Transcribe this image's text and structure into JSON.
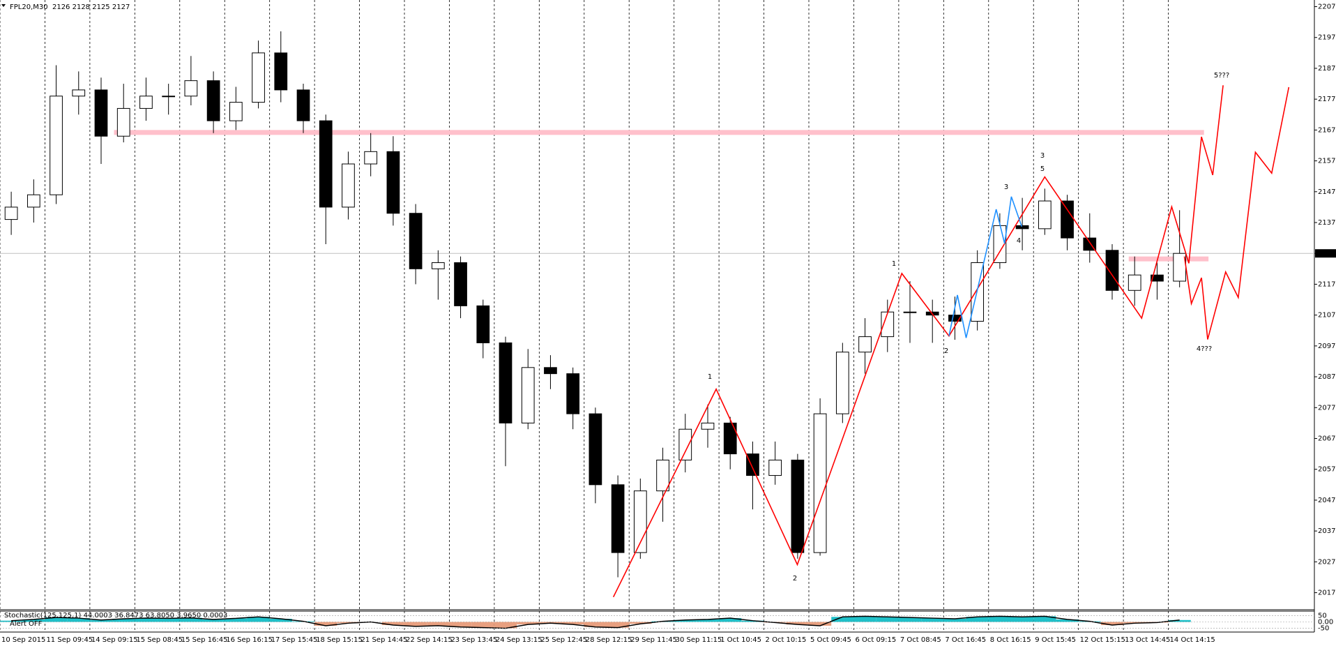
{
  "chart_data": {
    "type": "candlestick",
    "title": "FPL20,M30  2126 2128 2125 2127",
    "x": [
      4,
      12,
      20,
      28,
      36,
      44,
      52,
      60,
      68,
      76,
      84,
      92,
      100,
      108,
      116,
      124,
      132,
      140,
      148,
      156,
      164,
      172,
      180,
      188,
      196,
      204,
      212,
      220,
      228,
      236,
      244,
      252,
      260,
      268,
      276,
      284,
      292,
      300,
      308,
      316,
      324,
      332,
      340,
      348,
      356,
      364,
      372,
      380,
      388,
      396,
      404,
      412,
      420
    ],
    "open": [
      2138,
      2142,
      2146,
      2178,
      2180,
      2165,
      2174,
      2178,
      2178,
      2183,
      2170,
      2176,
      2192,
      2180,
      2170,
      2142,
      2156,
      2160,
      2140,
      2122,
      2124,
      2110,
      2098,
      2072,
      2090,
      2088,
      2075,
      2052,
      2030,
      2050,
      2060,
      2070,
      2072,
      2062,
      2055,
      2060,
      2030,
      2075,
      2095,
      2100,
      2108,
      2108,
      2107,
      2105,
      2124,
      2136,
      2135,
      2144,
      2132,
      2128,
      2115,
      2120,
      2118
    ],
    "high": [
      2147,
      2151,
      2188,
      2186,
      2184,
      2182,
      2184,
      2182,
      2191,
      2186,
      2181,
      2196,
      2199,
      2182,
      2172,
      2160,
      2166,
      2165,
      2143,
      2128,
      2126,
      2112,
      2100,
      2096,
      2094,
      2090,
      2077,
      2055,
      2054,
      2064,
      2075,
      2078,
      2074,
      2066,
      2066,
      2062,
      2080,
      2098,
      2106,
      2112,
      2118,
      2112,
      2113,
      2128,
      2140,
      2145,
      2148,
      2146,
      2140,
      2130,
      2126,
      2124,
      2141
    ],
    "low": [
      2133,
      2137,
      2143,
      2172,
      2156,
      2163,
      2170,
      2172,
      2175,
      2166,
      2167,
      2174,
      2176,
      2166,
      2130,
      2138,
      2152,
      2136,
      2117,
      2112,
      2106,
      2093,
      2058,
      2070,
      2083,
      2070,
      2046,
      2022,
      2028,
      2040,
      2056,
      2064,
      2057,
      2044,
      2052,
      2028,
      2029,
      2072,
      2088,
      2095,
      2098,
      2098,
      2099,
      2102,
      2122,
      2128,
      2133,
      2128,
      2124,
      2112,
      2110,
      2112,
      2116
    ],
    "close": [
      2142,
      2146,
      2178,
      2180,
      2165,
      2174,
      2178,
      2178,
      2183,
      2170,
      2176,
      2192,
      2180,
      2170,
      2142,
      2156,
      2160,
      2140,
      2122,
      2124,
      2110,
      2098,
      2072,
      2090,
      2088,
      2075,
      2052,
      2030,
      2050,
      2060,
      2070,
      2072,
      2062,
      2055,
      2060,
      2030,
      2075,
      2095,
      2100,
      2108,
      2108,
      2107,
      2105,
      2124,
      2136,
      2135,
      2144,
      2132,
      2128,
      2115,
      2120,
      2118,
      2127
    ],
    "xlim": [
      0,
      468
    ],
    "ylim": [
      2011.7,
      2208.7
    ],
    "yticks": [
      2017,
      2027,
      2037,
      2047,
      2057,
      2067,
      2077,
      2087,
      2097,
      2107,
      2117,
      2127,
      2137,
      2147,
      2157,
      2167,
      2177,
      2187,
      2197,
      2207
    ],
    "xticks": [
      {
        "value": 0,
        "label": "10 Sep 2015"
      },
      {
        "value": 16,
        "label": "11 Sep 09:45"
      },
      {
        "value": 32,
        "label": "14 Sep 09:15"
      },
      {
        "value": 48,
        "label": "15 Sep 08:45"
      },
      {
        "value": 64,
        "label": "15 Sep 16:45"
      },
      {
        "value": 80,
        "label": "16 Sep 16:15"
      },
      {
        "value": 96,
        "label": "17 Sep 15:45"
      },
      {
        "value": 112,
        "label": "18 Sep 15:15"
      },
      {
        "value": 128,
        "label": "21 Sep 14:45"
      },
      {
        "value": 144,
        "label": "22 Sep 14:15"
      },
      {
        "value": 160,
        "label": "23 Sep 13:45"
      },
      {
        "value": 176,
        "label": "24 Sep 13:15"
      },
      {
        "value": 192,
        "label": "25 Sep 12:45"
      },
      {
        "value": 208,
        "label": "28 Sep 12:15"
      },
      {
        "value": 224,
        "label": "29 Sep 11:45"
      },
      {
        "value": 240,
        "label": "30 Sep 11:15"
      },
      {
        "value": 256,
        "label": "1 Oct 10:45"
      },
      {
        "value": 272,
        "label": "2 Oct 10:15"
      },
      {
        "value": 288,
        "label": "5 Oct 09:45"
      },
      {
        "value": 304,
        "label": "6 Oct 09:15"
      },
      {
        "value": 320,
        "label": "7 Oct 08:45"
      },
      {
        "value": 336,
        "label": "7 Oct 16:45"
      },
      {
        "value": 352,
        "label": "8 Oct 16:15"
      },
      {
        "value": 368,
        "label": "9 Oct 15:45"
      },
      {
        "value": 384,
        "label": "12 Oct 15:15"
      },
      {
        "value": 400,
        "label": "13 Oct 14:45"
      },
      {
        "value": 416,
        "label": "14 Oct 14:15"
      }
    ],
    "current_price": 2127,
    "candle_color": "#000000",
    "wave_lines": [
      {
        "color": "#ff0000",
        "x": [
          218.4,
          255.0,
          283.9,
          321.1,
          337.9,
          372.0,
          406.5,
          417.2,
          423.3,
          427.8,
          431.8,
          435.5
        ],
        "y": [
          2015.6,
          2083.0,
          2026.1,
          2120.5,
          2100.2,
          2151.8,
          2106.0,
          2142.1,
          2123.8,
          2164.8,
          2152.4,
          2181.5
        ]
      },
      {
        "color": "#ff0000",
        "x": [
          421.7,
          424.2,
          427.8,
          430.0,
          436.4,
          440.9,
          447.0,
          452.8,
          458.9
        ],
        "y": [
          2126.0,
          2110.7,
          2119.1,
          2099.1,
          2121.0,
          2112.7,
          2159.8,
          2153.0,
          2180.9
        ]
      },
      {
        "color": "#1e90ff",
        "x": [
          337.9,
          340.9,
          344.0,
          354.7,
          357.7,
          360.1,
          363.8
        ],
        "y": [
          2100.2,
          2113.5,
          2099.6,
          2141.3,
          2130.2,
          2145.4,
          2135.7
        ]
      }
    ],
    "levels": [
      {
        "color": "#ffc0cb",
        "value": 2166.2,
        "x": [
          40.6,
          428.7
        ]
      },
      {
        "color": "#ffc0cb",
        "value": 2125.2,
        "x": [
          401.9,
          430.3
        ]
      }
    ],
    "wave_labels": [
      "1",
      "2",
      "1",
      "2",
      "3",
      "4",
      "3",
      "5",
      "5???",
      "4???"
    ],
    "wave_label_color": "#0000ff",
    "stochastic": {
      "label": "Stochastic(125,125,1) 44.0003 36.8473 63.8050 3.9650 0.0003",
      "alert": "Alert OFF",
      "values": [
        10,
        20,
        35,
        30,
        15,
        25,
        30,
        28,
        32,
        20,
        28,
        40,
        25,
        5,
        -30,
        -10,
        0,
        -25,
        -35,
        -30,
        -40,
        -45,
        -50,
        -20,
        -10,
        -20,
        -40,
        -45,
        -15,
        5,
        15,
        20,
        30,
        10,
        -5,
        -20,
        -30,
        40,
        45,
        40,
        35,
        30,
        25,
        40,
        45,
        40,
        45,
        20,
        5,
        -25,
        -10,
        -5,
        15
      ],
      "ylim": [
        -80,
        80
      ],
      "yticks": [
        50,
        {
          "value": 0,
          "label": "0.00"
        },
        -50
      ],
      "up_color": "#20c0c8",
      "down_color": "#e8a080"
    }
  }
}
